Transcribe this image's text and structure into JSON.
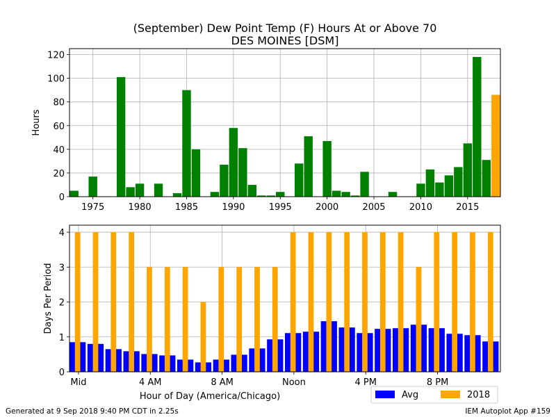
{
  "title_line1": "(September) Dew Point Temp (F) Hours At or Above 70",
  "title_line2": "DES MOINES [DSM]",
  "footer_left": "Generated at 9 Sep 2018 9:40 PM CDT in 2.25s",
  "footer_right": "IEM Autoplot App #159",
  "colors": {
    "yearly": "#008000",
    "current_year": "#ffa500",
    "avg": "#0000ff",
    "grid": "#b0b0b0"
  },
  "chart_data": [
    {
      "type": "bar",
      "title": "(September) Dew Point Temp (F) Hours At or Above 70",
      "subtitle": "DES MOINES [DSM]",
      "xlabel": "",
      "ylabel": "Hours",
      "xlim": [
        1972.5,
        2018.5
      ],
      "ylim": [
        0,
        125
      ],
      "xticks": [
        1975,
        1980,
        1985,
        1990,
        1995,
        2000,
        2005,
        2010,
        2015
      ],
      "yticks": [
        0,
        20,
        40,
        60,
        80,
        100,
        120
      ],
      "grid": true,
      "x": [
        1973,
        1974,
        1975,
        1976,
        1977,
        1978,
        1979,
        1980,
        1981,
        1982,
        1983,
        1984,
        1985,
        1986,
        1987,
        1988,
        1989,
        1990,
        1991,
        1992,
        1993,
        1994,
        1995,
        1996,
        1997,
        1998,
        1999,
        2000,
        2001,
        2002,
        2003,
        2004,
        2005,
        2006,
        2007,
        2008,
        2009,
        2010,
        2011,
        2012,
        2013,
        2014,
        2015,
        2016,
        2017,
        2018
      ],
      "values": [
        5,
        0,
        17,
        0,
        0,
        101,
        8,
        11,
        0,
        11,
        0,
        3,
        90,
        40,
        0,
        4,
        27,
        58,
        41,
        10,
        1,
        1,
        4,
        0,
        28,
        51,
        0,
        47,
        5,
        4,
        1,
        21,
        0,
        0,
        4,
        0,
        0,
        11,
        23,
        12,
        18,
        25,
        45,
        118,
        31,
        86
      ],
      "highlight_x": 2018
    },
    {
      "type": "bar",
      "xlabel": "Hour of Day (America/Chicago)",
      "ylabel": "Days Per Period",
      "xlim": [
        -0.5,
        23.5
      ],
      "ylim": [
        0,
        4.2
      ],
      "xticks": [
        "Mid",
        "4 AM",
        "8 AM",
        "Noon",
        "4 PM",
        "8 PM"
      ],
      "yticks": [
        0,
        1,
        2,
        3,
        4
      ],
      "grid": true,
      "legend_position": "below-right",
      "categories": [
        0,
        1,
        2,
        3,
        4,
        5,
        6,
        7,
        8,
        9,
        10,
        11,
        12,
        13,
        14,
        15,
        16,
        17,
        18,
        19,
        20,
        21,
        22,
        23
      ],
      "series": [
        {
          "name": "Avg",
          "values": [
            0.85,
            0.8,
            0.65,
            0.59,
            0.51,
            0.47,
            0.35,
            0.27,
            0.35,
            0.49,
            0.67,
            0.93,
            1.11,
            1.15,
            1.45,
            1.27,
            1.11,
            1.23,
            1.25,
            1.35,
            1.25,
            1.09,
            1.05,
            0.87
          ]
        },
        {
          "name": "2018",
          "values": [
            4,
            4,
            4,
            4,
            3,
            3,
            3,
            2,
            3,
            3,
            3,
            3,
            4,
            4,
            4,
            4,
            4,
            4,
            4,
            3,
            4,
            4,
            4,
            4
          ]
        }
      ]
    }
  ]
}
